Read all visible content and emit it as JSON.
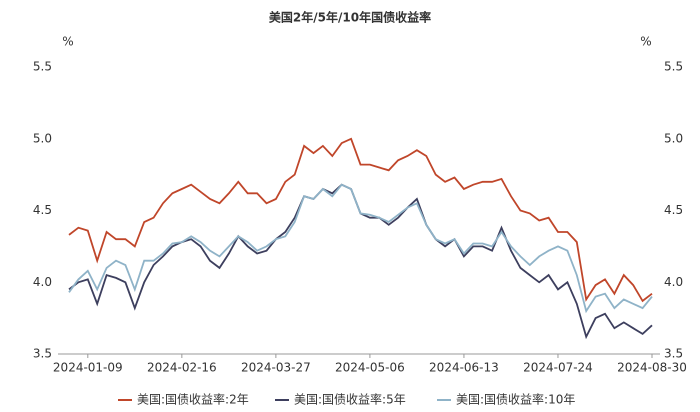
{
  "chart_data": {
    "type": "line",
    "title": "美国2年/5年/10年国债收益率",
    "y_label": "%",
    "y2_label": "%",
    "categories": [
      null,
      null,
      "2024-01-09",
      null,
      null,
      null,
      null,
      null,
      null,
      null,
      null,
      null,
      "2024-02-16",
      null,
      null,
      null,
      null,
      null,
      null,
      null,
      null,
      null,
      "2024-03-27",
      null,
      null,
      null,
      null,
      null,
      null,
      null,
      null,
      null,
      "2024-05-06",
      null,
      null,
      null,
      null,
      null,
      null,
      null,
      null,
      null,
      "2024-06-13",
      null,
      null,
      null,
      null,
      null,
      null,
      null,
      null,
      null,
      "2024-07-24",
      null,
      null,
      null,
      null,
      null,
      null,
      null,
      null,
      null,
      "2024-08-30"
    ],
    "series": [
      {
        "name": "美国:国债收益率:2年",
        "color": "#c0462a",
        "values": [
          4.33,
          4.38,
          4.36,
          4.15,
          4.35,
          4.3,
          4.3,
          4.25,
          4.42,
          4.45,
          4.55,
          4.62,
          4.65,
          4.68,
          4.63,
          4.58,
          4.55,
          4.62,
          4.7,
          4.62,
          4.62,
          4.55,
          4.58,
          4.7,
          4.75,
          4.95,
          4.9,
          4.95,
          4.88,
          4.97,
          5.0,
          4.82,
          4.82,
          4.8,
          4.78,
          4.85,
          4.88,
          4.92,
          4.88,
          4.75,
          4.7,
          4.73,
          4.65,
          4.68,
          4.7,
          4.7,
          4.72,
          4.6,
          4.5,
          4.48,
          4.43,
          4.45,
          4.35,
          4.35,
          4.28,
          3.88,
          3.98,
          4.02,
          3.92,
          4.05,
          3.98,
          3.87,
          3.92
        ]
      },
      {
        "name": "美国:国债收益率:5年",
        "color": "#3d3f5e",
        "values": [
          3.95,
          4.0,
          4.02,
          3.85,
          4.05,
          4.03,
          4.0,
          3.82,
          4.0,
          4.12,
          4.18,
          4.25,
          4.28,
          4.3,
          4.25,
          4.15,
          4.1,
          4.2,
          4.32,
          4.25,
          4.2,
          4.22,
          4.3,
          4.35,
          4.45,
          4.6,
          4.58,
          4.65,
          4.62,
          4.68,
          4.65,
          4.48,
          4.45,
          4.45,
          4.4,
          4.45,
          4.52,
          4.58,
          4.4,
          4.3,
          4.25,
          4.3,
          4.18,
          4.25,
          4.25,
          4.22,
          4.38,
          4.22,
          4.1,
          4.05,
          4.0,
          4.05,
          3.95,
          4.0,
          3.85,
          3.62,
          3.75,
          3.78,
          3.68,
          3.72,
          3.68,
          3.64,
          3.7
        ]
      },
      {
        "name": "美国:国债收益率:10年",
        "color": "#8fb3c8",
        "values": [
          3.93,
          4.02,
          4.08,
          3.95,
          4.1,
          4.15,
          4.12,
          3.95,
          4.15,
          4.15,
          4.2,
          4.27,
          4.28,
          4.32,
          4.28,
          4.22,
          4.18,
          4.25,
          4.32,
          4.28,
          4.22,
          4.25,
          4.3,
          4.32,
          4.42,
          4.6,
          4.58,
          4.65,
          4.6,
          4.68,
          4.65,
          4.48,
          4.47,
          4.45,
          4.42,
          4.47,
          4.52,
          4.55,
          4.4,
          4.3,
          4.27,
          4.3,
          4.2,
          4.27,
          4.27,
          4.25,
          4.35,
          4.25,
          4.18,
          4.12,
          4.18,
          4.22,
          4.25,
          4.22,
          4.05,
          3.8,
          3.9,
          3.92,
          3.82,
          3.88,
          3.85,
          3.82,
          3.9
        ]
      }
    ],
    "ylim": [
      3.5,
      5.5
    ],
    "yticks": [
      3.5,
      {
        "value": 4,
        "label": "4.0"
      },
      4.5,
      {
        "value": 5,
        "label": "5.0"
      },
      5.5
    ],
    "y2lim": [
      3.5,
      5.5
    ],
    "y2ticks": [
      3.5,
      {
        "value": 4,
        "label": "4.0"
      },
      4.5,
      {
        "value": 5,
        "label": "5.0"
      },
      5.5
    ],
    "legend": "bottom"
  }
}
